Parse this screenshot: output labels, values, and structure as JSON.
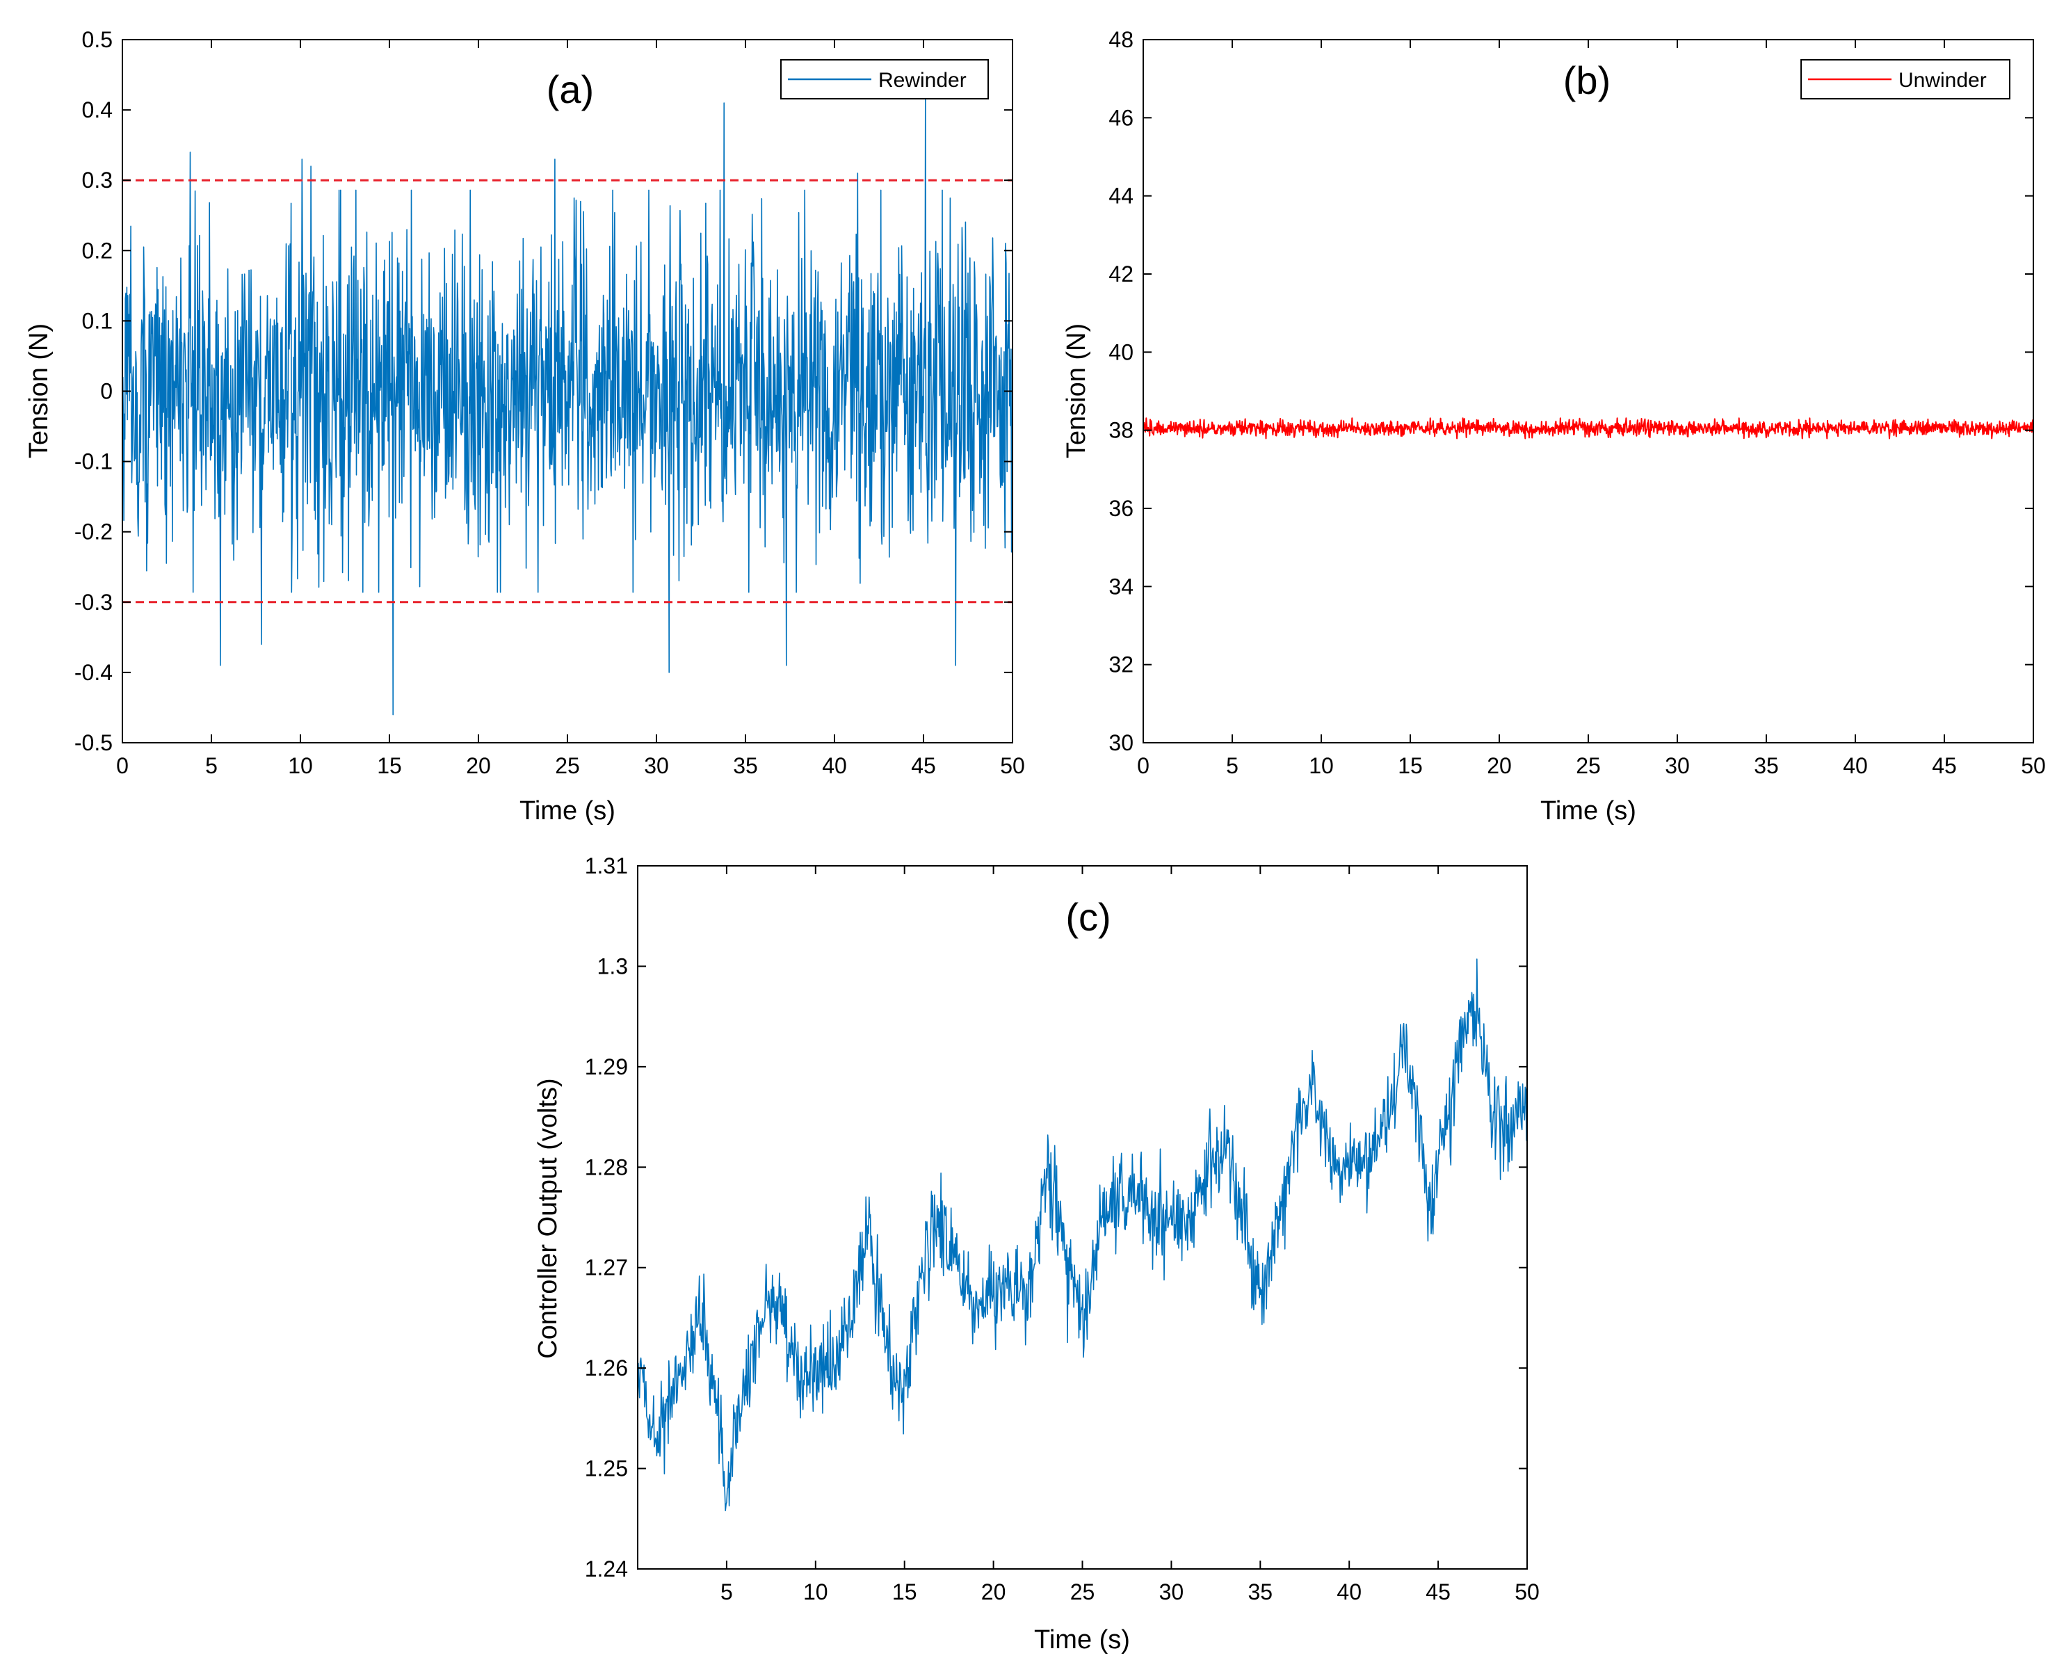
{
  "figure": {
    "colors": {
      "blue": "#0072BD",
      "red": "#FF0000",
      "ref_line": "#E8202A",
      "axis": "#000000"
    }
  },
  "chart_data": [
    {
      "id": "a",
      "type": "line",
      "panel_label": "(a)",
      "xlabel": "Time (s)",
      "ylabel": "Tension (N)",
      "xlim": [
        0,
        50
      ],
      "ylim": [
        -0.5,
        0.5
      ],
      "xticks": [
        0,
        5,
        10,
        15,
        20,
        25,
        30,
        35,
        40,
        45,
        50
      ],
      "xtick_labels": [
        "0",
        "5",
        "10",
        "15",
        "20",
        "25",
        "30",
        "35",
        "40",
        "45",
        "50"
      ],
      "yticks": [
        -0.5,
        -0.4,
        -0.3,
        -0.2,
        -0.1,
        0,
        0.1,
        0.2,
        0.3,
        0.4,
        0.5
      ],
      "ytick_labels": [
        "-0.5",
        "-0.4",
        "-0.3",
        "-0.2",
        "-0.1",
        "0",
        "0.1",
        "0.2",
        "0.3",
        "0.4",
        "0.5"
      ],
      "legend": {
        "position": "top-right",
        "entries": [
          "Rewinder"
        ]
      },
      "series": [
        {
          "name": "Rewinder",
          "color": "#0072BD",
          "kind": "noise",
          "samples": 1800,
          "x_range": [
            0,
            50
          ],
          "mean": 0.0,
          "std": 0.11,
          "peaks": [
            {
              "x": 3.8,
              "y": 0.34
            },
            {
              "x": 10.1,
              "y": 0.33
            },
            {
              "x": 10.6,
              "y": 0.32
            },
            {
              "x": 24.3,
              "y": 0.33
            },
            {
              "x": 33.8,
              "y": 0.41
            },
            {
              "x": 41.3,
              "y": 0.31
            },
            {
              "x": 45.1,
              "y": 0.42
            },
            {
              "x": 5.5,
              "y": -0.39
            },
            {
              "x": 7.8,
              "y": -0.36
            },
            {
              "x": 15.2,
              "y": -0.46
            },
            {
              "x": 30.7,
              "y": -0.4
            },
            {
              "x": 37.3,
              "y": -0.39
            },
            {
              "x": 46.8,
              "y": -0.39
            }
          ]
        }
      ],
      "reference_lines": [
        {
          "y": 0.3,
          "style": "dashed",
          "color": "#E8202A"
        },
        {
          "y": -0.3,
          "style": "dashed",
          "color": "#E8202A"
        }
      ]
    },
    {
      "id": "b",
      "type": "line",
      "panel_label": "(b)",
      "xlabel": "Time (s)",
      "ylabel": "Tension (N)",
      "xlim": [
        0,
        50
      ],
      "ylim": [
        30,
        48
      ],
      "xticks": [
        0,
        5,
        10,
        15,
        20,
        25,
        30,
        35,
        40,
        45,
        50
      ],
      "xtick_labels": [
        "0",
        "5",
        "10",
        "15",
        "20",
        "25",
        "30",
        "35",
        "40",
        "45",
        "50"
      ],
      "yticks": [
        30,
        32,
        34,
        36,
        38,
        40,
        42,
        44,
        46,
        48
      ],
      "ytick_labels": [
        "30",
        "32",
        "34",
        "36",
        "38",
        "40",
        "42",
        "44",
        "46",
        "48"
      ],
      "legend": {
        "position": "top-right",
        "entries": [
          "Unwinder"
        ]
      },
      "series": [
        {
          "name": "Unwinder",
          "color": "#FF0000",
          "kind": "noise",
          "samples": 1800,
          "x_range": [
            0,
            50
          ],
          "mean": 38.05,
          "std": 0.1,
          "peaks": []
        }
      ]
    },
    {
      "id": "c",
      "type": "line",
      "panel_label": "(c)",
      "xlabel": "Time (s)",
      "ylabel": "Controller Output (volts)",
      "xlim": [
        0,
        50
      ],
      "ylim": [
        1.24,
        1.31
      ],
      "xticks": [
        5,
        10,
        15,
        20,
        25,
        30,
        35,
        40,
        45,
        50
      ],
      "xtick_labels": [
        "5",
        "10",
        "15",
        "20",
        "25",
        "30",
        "35",
        "40",
        "45",
        "50"
      ],
      "yticks": [
        1.24,
        1.25,
        1.26,
        1.27,
        1.28,
        1.29,
        1.3,
        1.31
      ],
      "ytick_labels": [
        "1.24",
        "1.25",
        "1.26",
        "1.27",
        "1.28",
        "1.29",
        "1.3",
        "1.31"
      ],
      "legend": null,
      "series": [
        {
          "name": "Controller Output",
          "color": "#0072BD",
          "kind": "trend-noise",
          "samples": 1400,
          "x_range": [
            0,
            50
          ],
          "std": 0.0022,
          "trend_points": [
            [
              0,
              1.261
            ],
            [
              1,
              1.252
            ],
            [
              2,
              1.258
            ],
            [
              3.5,
              1.265
            ],
            [
              4.5,
              1.255
            ],
            [
              5,
              1.248
            ],
            [
              6,
              1.257
            ],
            [
              7,
              1.265
            ],
            [
              8,
              1.267
            ],
            [
              9,
              1.259
            ],
            [
              10,
              1.26
            ],
            [
              11,
              1.26
            ],
            [
              12,
              1.265
            ],
            [
              13,
              1.274
            ],
            [
              14,
              1.262
            ],
            [
              15,
              1.257
            ],
            [
              16,
              1.27
            ],
            [
              17,
              1.275
            ],
            [
              18,
              1.27
            ],
            [
              19,
              1.266
            ],
            [
              20,
              1.268
            ],
            [
              21,
              1.268
            ],
            [
              22,
              1.267
            ],
            [
              23,
              1.28
            ],
            [
              24,
              1.272
            ],
            [
              25,
              1.264
            ],
            [
              26,
              1.275
            ],
            [
              27,
              1.277
            ],
            [
              28,
              1.277
            ],
            [
              29,
              1.275
            ],
            [
              30,
              1.275
            ],
            [
              31,
              1.274
            ],
            [
              32,
              1.28
            ],
            [
              33,
              1.282
            ],
            [
              34,
              1.276
            ],
            [
              35,
              1.266
            ],
            [
              36,
              1.274
            ],
            [
              37,
              1.284
            ],
            [
              38,
              1.288
            ],
            [
              39,
              1.28
            ],
            [
              40,
              1.28
            ],
            [
              41,
              1.281
            ],
            [
              42,
              1.284
            ],
            [
              43,
              1.292
            ],
            [
              44,
              1.285
            ],
            [
              44.5,
              1.275
            ],
            [
              45,
              1.28
            ],
            [
              46,
              1.29
            ],
            [
              47,
              1.297
            ],
            [
              48,
              1.286
            ],
            [
              49,
              1.284
            ],
            [
              50,
              1.285
            ]
          ]
        }
      ]
    }
  ]
}
